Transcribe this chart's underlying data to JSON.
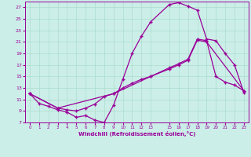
{
  "background_color": "#cceee8",
  "grid_color": "#aaddcc",
  "line_color": "#990099",
  "xlabel": "Windchill (Refroidissement éolien,°C)",
  "xlim": [
    -0.5,
    23.5
  ],
  "ylim": [
    7,
    28
  ],
  "yticks": [
    7,
    9,
    11,
    13,
    15,
    17,
    19,
    21,
    23,
    25,
    27
  ],
  "xtick_positions": [
    0,
    1,
    2,
    3,
    4,
    5,
    6,
    7,
    8,
    9,
    10,
    11,
    12,
    13,
    15,
    16,
    17,
    18,
    19,
    20,
    21,
    22,
    23
  ],
  "xtick_labels": [
    "0",
    "1",
    "2",
    "3",
    "4",
    "5",
    "6",
    "7",
    "8",
    "9",
    "10",
    "11",
    "12",
    "13",
    "15",
    "16",
    "17",
    "18",
    "19",
    "20",
    "21",
    "22",
    "23"
  ],
  "line1_x": [
    0,
    1,
    2,
    3,
    4,
    5,
    6,
    7,
    8,
    9,
    10,
    11,
    12,
    13,
    15,
    16,
    17,
    18,
    19,
    20,
    21,
    22,
    23
  ],
  "line1_y": [
    12.0,
    10.3,
    9.8,
    9.2,
    8.8,
    7.9,
    8.2,
    7.4,
    7.0,
    10.0,
    14.5,
    19.0,
    22.0,
    24.5,
    27.5,
    27.8,
    27.2,
    26.5,
    21.5,
    21.2,
    19.0,
    17.0,
    12.2
  ],
  "line2_x": [
    0,
    3,
    4,
    5,
    6,
    7,
    8,
    9,
    10,
    11,
    12,
    13,
    15,
    16,
    17,
    18,
    19,
    23
  ],
  "line2_y": [
    12.0,
    9.5,
    9.2,
    9.0,
    9.5,
    10.2,
    11.5,
    12.0,
    13.0,
    13.8,
    14.5,
    15.0,
    16.3,
    17.0,
    17.8,
    21.3,
    21.0,
    12.5
  ],
  "line3_x": [
    0,
    3,
    9,
    13,
    15,
    16,
    17,
    18,
    19,
    20,
    21,
    22,
    23
  ],
  "line3_y": [
    12.0,
    9.5,
    12.0,
    15.0,
    16.5,
    17.2,
    18.0,
    21.5,
    21.2,
    15.0,
    14.0,
    13.5,
    12.5
  ]
}
